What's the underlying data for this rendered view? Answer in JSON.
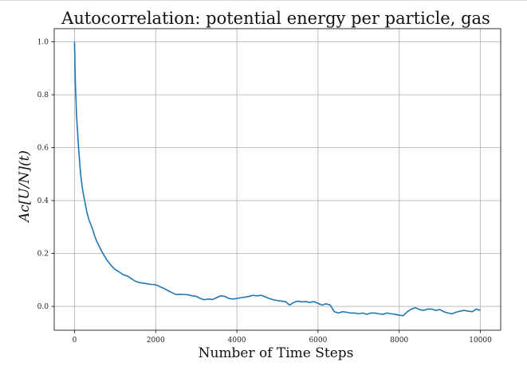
{
  "chart_data": {
    "type": "line",
    "title": "Autocorrelation: potential energy per particle, gas",
    "xlabel": "Number of Time Steps",
    "ylabel": "Ac[U/N](t)",
    "xlim": [
      -500,
      10500
    ],
    "ylim": [
      -0.09,
      1.05
    ],
    "xticks": [
      0,
      2000,
      4000,
      6000,
      8000,
      10000
    ],
    "yticks": [
      0.0,
      0.2,
      0.4,
      0.6,
      0.8,
      1.0
    ],
    "xtick_labels": [
      "0",
      "2000",
      "4000",
      "6000",
      "8000",
      "10000"
    ],
    "ytick_labels": [
      "0.0",
      "0.2",
      "0.4",
      "0.6",
      "0.8",
      "1.0"
    ],
    "grid": true,
    "line_color": "#1f77b4",
    "series": [
      {
        "x": [
          0,
          20,
          50,
          100,
          150,
          200,
          250,
          300,
          350,
          400,
          450,
          500,
          550,
          600,
          650,
          700,
          800,
          900,
          1000,
          1100,
          1200,
          1300,
          1400,
          1500,
          1600,
          1700,
          1800,
          1900,
          2000,
          2100,
          2200,
          2300,
          2400,
          2500,
          2600,
          2700,
          2800,
          2900,
          3000,
          3100,
          3200,
          3300,
          3400,
          3500,
          3600,
          3700,
          3800,
          3900,
          4000,
          4100,
          4200,
          4300,
          4400,
          4500,
          4600,
          4700,
          4800,
          4900,
          5000,
          5100,
          5200,
          5300,
          5400,
          5500,
          5600,
          5700,
          5800,
          5900,
          6000,
          6100,
          6200,
          6300,
          6400,
          6500,
          6600,
          6700,
          6800,
          6900,
          7000,
          7100,
          7200,
          7300,
          7400,
          7500,
          7600,
          7700,
          7800,
          7900,
          8000,
          8100,
          8200,
          8300,
          8400,
          8500,
          8600,
          8700,
          8800,
          8900,
          9000,
          9100,
          9200,
          9300,
          9400,
          9500,
          9600,
          9700,
          9800,
          9900,
          10000
        ],
        "y": [
          1.0,
          0.85,
          0.72,
          0.6,
          0.5,
          0.44,
          0.4,
          0.36,
          0.33,
          0.31,
          0.29,
          0.265,
          0.245,
          0.23,
          0.215,
          0.2,
          0.175,
          0.155,
          0.14,
          0.13,
          0.12,
          0.115,
          0.105,
          0.095,
          0.09,
          0.088,
          0.085,
          0.083,
          0.082,
          0.075,
          0.068,
          0.06,
          0.052,
          0.045,
          0.046,
          0.045,
          0.044,
          0.04,
          0.038,
          0.03,
          0.025,
          0.028,
          0.026,
          0.033,
          0.04,
          0.038,
          0.03,
          0.028,
          0.03,
          0.033,
          0.035,
          0.038,
          0.042,
          0.04,
          0.042,
          0.036,
          0.03,
          0.025,
          0.022,
          0.02,
          0.018,
          0.005,
          0.015,
          0.02,
          0.017,
          0.018,
          0.015,
          0.018,
          0.012,
          0.005,
          0.01,
          0.005,
          -0.02,
          -0.025,
          -0.02,
          -0.022,
          -0.025,
          -0.025,
          -0.028,
          -0.025,
          -0.03,
          -0.025,
          -0.025,
          -0.028,
          -0.03,
          -0.025,
          -0.028,
          -0.03,
          -0.033,
          -0.035,
          -0.02,
          -0.01,
          -0.005,
          -0.012,
          -0.015,
          -0.01,
          -0.01,
          -0.015,
          -0.012,
          -0.02,
          -0.025,
          -0.028,
          -0.022,
          -0.018,
          -0.015,
          -0.018,
          -0.02,
          -0.01,
          -0.015
        ]
      }
    ]
  }
}
